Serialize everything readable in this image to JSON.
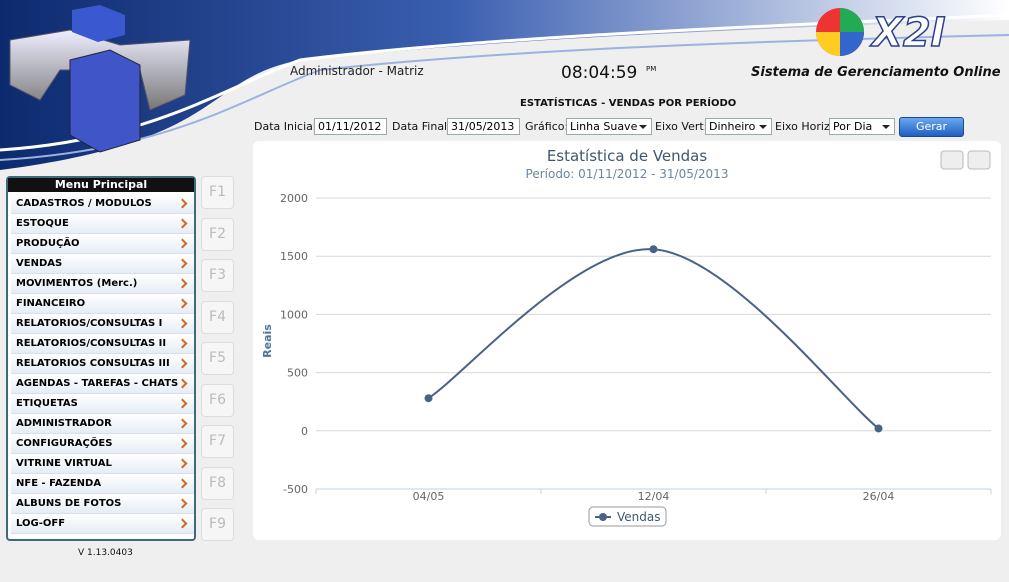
{
  "header": {
    "user": "Administrador - Matriz",
    "clock": "08:04:59",
    "clock_suffix": "PM",
    "logo": "X2I",
    "system_name": "Sistema de Gerenciamento Online",
    "page_title": "ESTATÍSTICAS - VENDAS POR PERÍODO"
  },
  "filters": {
    "start_label": "Data Inicial:",
    "start_value": "01/11/2012",
    "end_label": "Data Final:",
    "end_value": "31/05/2013",
    "chart_label": "Gráfico:",
    "chart_value": "Linha Suave",
    "vert_label": "Eixo Vert:",
    "vert_value": "Dinheiro",
    "horiz_label": "Eixo Horiz:",
    "horiz_value": "Por Dia",
    "button": "Gerar"
  },
  "menu": {
    "title": "Menu Principal",
    "items": [
      "CADASTROS / MODULOS",
      "ESTOQUE",
      "PRODUÇÃO",
      "VENDAS",
      "MOVIMENTOS (Merc.)",
      "FINANCEIRO",
      "RELATORIOS/CONSULTAS I",
      "RELATORIOS/CONSULTAS II",
      "RELATORIOS CONSULTAS III",
      "AGENDAS - TAREFAS - CHATS",
      "ETIQUETAS",
      "ADMINISTRADOR",
      "CONFIGURAÇÕES",
      "VITRINE VIRTUAL",
      "NFE - FAZENDA",
      "ALBUNS DE FOTOS",
      "LOG-OFF"
    ]
  },
  "function_keys": [
    "F1",
    "F2",
    "F3",
    "F4",
    "F5",
    "F6",
    "F7",
    "F8",
    "F9"
  ],
  "version": "V 1.13.0403",
  "chart_data": {
    "type": "line",
    "smooth": true,
    "title": "Estatística de Vendas",
    "subtitle": "Período: 01/11/2012 - 31/05/2013",
    "y_label": "Reais",
    "categories": [
      "04/05",
      "12/04",
      "26/04"
    ],
    "series": [
      {
        "name": "Vendas",
        "color": "#4a6285",
        "values": [
          280,
          1560,
          20
        ]
      }
    ],
    "ylim": [
      -500,
      2000
    ],
    "yticks": [
      -500,
      0,
      500,
      1000,
      1500,
      2000
    ],
    "grid": true,
    "legend": "bottom"
  }
}
